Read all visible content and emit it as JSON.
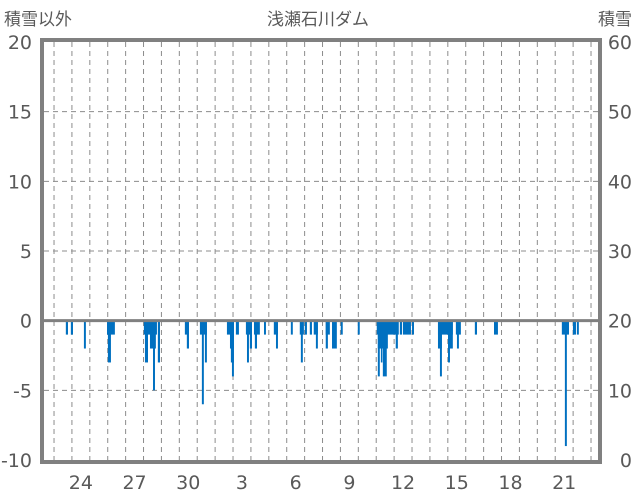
{
  "chart_data": {
    "type": "bar",
    "title": "浅瀬石川ダム",
    "left_axis_label": "積雪以外",
    "right_axis_label": "積雪",
    "ylim": [
      -10,
      20
    ],
    "y2lim": [
      0,
      60
    ],
    "yticks": [
      20,
      15,
      10,
      5,
      0,
      -5,
      -10
    ],
    "y2ticks": [
      60,
      50,
      40,
      30,
      20,
      10,
      0
    ],
    "xlim": [
      22.44,
      53.39
    ],
    "x_unit": "day index (continuous; 31 = next month's 1st)",
    "xticks": [
      {
        "day": 24,
        "label": "24"
      },
      {
        "day": 27,
        "label": "27"
      },
      {
        "day": 30,
        "label": "30"
      },
      {
        "day": 33,
        "label": "3"
      },
      {
        "day": 36,
        "label": "6"
      },
      {
        "day": 39,
        "label": "9"
      },
      {
        "day": 42,
        "label": "12"
      },
      {
        "day": 45,
        "label": "15"
      },
      {
        "day": 48,
        "label": "18"
      },
      {
        "day": 51,
        "label": "21"
      }
    ],
    "grid": true,
    "bar_color": "#0070c0",
    "bars": [
      [
        23.66,
        23.78,
        -1
      ],
      [
        23.94,
        24.06,
        -1
      ],
      [
        24.67,
        24.78,
        -2
      ],
      [
        25.96,
        26.4,
        -1
      ],
      [
        26.01,
        26.18,
        -3
      ],
      [
        28.02,
        28.75,
        -1
      ],
      [
        28.08,
        28.25,
        -3
      ],
      [
        28.36,
        28.69,
        -2
      ],
      [
        28.53,
        28.64,
        -5
      ],
      [
        28.8,
        28.92,
        -3
      ],
      [
        30.31,
        30.54,
        -1
      ],
      [
        30.42,
        30.54,
        -2
      ],
      [
        31.15,
        31.54,
        -1
      ],
      [
        31.26,
        31.37,
        -6
      ],
      [
        31.43,
        31.54,
        -3
      ],
      [
        32.66,
        33.05,
        -1
      ],
      [
        32.83,
        33.05,
        -2
      ],
      [
        32.88,
        33.05,
        -3
      ],
      [
        32.94,
        33.05,
        -4
      ],
      [
        33.16,
        33.33,
        -1
      ],
      [
        33.72,
        34.06,
        -1
      ],
      [
        33.78,
        33.89,
        -3
      ],
      [
        33.94,
        34.06,
        -2
      ],
      [
        34.17,
        34.5,
        -1
      ],
      [
        34.22,
        34.34,
        -2
      ],
      [
        34.73,
        34.84,
        -1
      ],
      [
        35.28,
        35.51,
        -1
      ],
      [
        35.4,
        35.51,
        -2
      ],
      [
        36.23,
        36.34,
        -1
      ],
      [
        36.73,
        36.96,
        -1
      ],
      [
        36.79,
        36.9,
        -3
      ],
      [
        37.01,
        37.13,
        -1
      ],
      [
        37.29,
        37.41,
        -1
      ],
      [
        37.51,
        37.74,
        -1
      ],
      [
        37.63,
        37.74,
        -2
      ],
      [
        38.18,
        38.41,
        -1
      ],
      [
        38.18,
        38.3,
        -2
      ],
      [
        38.53,
        38.8,
        -2
      ],
      [
        39.02,
        39.13,
        -1
      ],
      [
        39.97,
        40.08,
        -1
      ],
      [
        41.03,
        42.26,
        -1
      ],
      [
        41.09,
        41.65,
        -2
      ],
      [
        41.09,
        41.2,
        -4
      ],
      [
        41.26,
        41.31,
        -3
      ],
      [
        41.37,
        41.59,
        -4
      ],
      [
        42.09,
        42.21,
        -2
      ],
      [
        42.32,
        42.44,
        -1
      ],
      [
        42.49,
        42.94,
        -1
      ],
      [
        43.0,
        43.11,
        -1
      ],
      [
        44.45,
        45.28,
        -1
      ],
      [
        44.45,
        44.67,
        -2
      ],
      [
        44.56,
        44.67,
        -4
      ],
      [
        45.01,
        45.28,
        -2
      ],
      [
        45.01,
        45.12,
        -3
      ],
      [
        45.45,
        45.73,
        -1
      ],
      [
        45.51,
        45.62,
        -2
      ],
      [
        46.51,
        46.63,
        -1
      ],
      [
        47.58,
        47.8,
        -1
      ],
      [
        51.37,
        51.77,
        -1
      ],
      [
        51.54,
        51.65,
        -9
      ],
      [
        51.99,
        52.16,
        -1
      ],
      [
        52.21,
        52.32,
        -1
      ]
    ]
  }
}
